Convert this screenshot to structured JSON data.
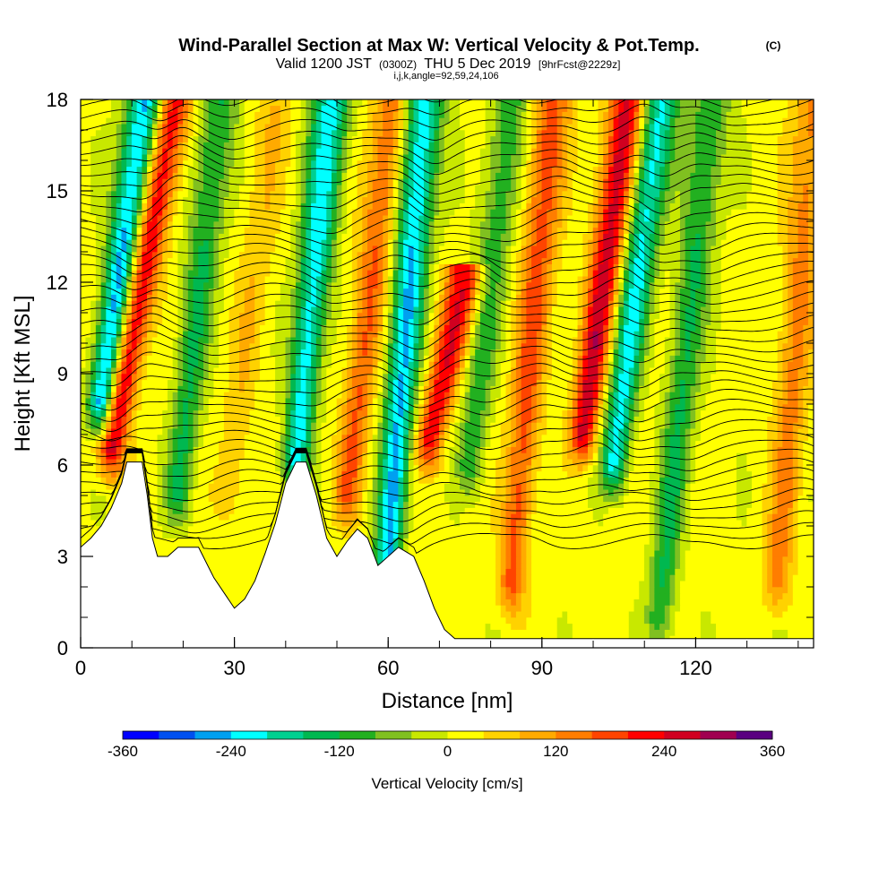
{
  "title": {
    "main": "Wind-Parallel Section at Max W: Vertical Velocity & Pot.Temp.",
    "copyright": "(C)",
    "valid_prefix": "Valid 1200 JST",
    "valid_utc": "(0300Z)",
    "valid_date": "THU 5 Dec 2019",
    "forecast": "[9hrFcst@2229z]",
    "params": "i,j,k,angle=92,59,24,106"
  },
  "chart_data": {
    "type": "heatmap",
    "xlabel": "Distance [nm]",
    "ylabel": "Height [Kft MSL]",
    "xlim": [
      0,
      143
    ],
    "ylim": [
      0,
      18
    ],
    "x_ticks": [
      0,
      30,
      60,
      90,
      120
    ],
    "y_ticks": [
      0,
      3,
      6,
      9,
      12,
      15,
      18
    ],
    "x_tick_labels": [
      "0",
      "30",
      "60",
      "90",
      "120"
    ],
    "y_tick_labels": [
      "0",
      "3",
      "6",
      "9",
      "12",
      "15",
      "18"
    ],
    "terrain": [
      {
        "x": 0,
        "z": 3.3
      },
      {
        "x": 2,
        "z": 3.6
      },
      {
        "x": 4,
        "z": 4.0
      },
      {
        "x": 6,
        "z": 4.6
      },
      {
        "x": 8,
        "z": 5.4
      },
      {
        "x": 9,
        "z": 6.1
      },
      {
        "x": 12,
        "z": 6.1
      },
      {
        "x": 13,
        "z": 5.0
      },
      {
        "x": 14,
        "z": 3.6
      },
      {
        "x": 15,
        "z": 3.0
      },
      {
        "x": 17,
        "z": 3.0
      },
      {
        "x": 19,
        "z": 3.3
      },
      {
        "x": 23,
        "z": 3.3
      },
      {
        "x": 26,
        "z": 2.3
      },
      {
        "x": 28,
        "z": 1.8
      },
      {
        "x": 30,
        "z": 1.3
      },
      {
        "x": 32,
        "z": 1.6
      },
      {
        "x": 34,
        "z": 2.2
      },
      {
        "x": 36,
        "z": 3.1
      },
      {
        "x": 38,
        "z": 4.1
      },
      {
        "x": 40,
        "z": 5.4
      },
      {
        "x": 42,
        "z": 6.1
      },
      {
        "x": 44,
        "z": 6.1
      },
      {
        "x": 46,
        "z": 5.0
      },
      {
        "x": 48,
        "z": 3.6
      },
      {
        "x": 50,
        "z": 3.0
      },
      {
        "x": 52,
        "z": 3.5
      },
      {
        "x": 54,
        "z": 3.9
      },
      {
        "x": 56,
        "z": 3.6
      },
      {
        "x": 58,
        "z": 2.7
      },
      {
        "x": 60,
        "z": 3.0
      },
      {
        "x": 62,
        "z": 3.3
      },
      {
        "x": 65,
        "z": 3.0
      },
      {
        "x": 67,
        "z": 2.2
      },
      {
        "x": 69,
        "z": 1.3
      },
      {
        "x": 71,
        "z": 0.6
      },
      {
        "x": 73,
        "z": 0.3
      },
      {
        "x": 143,
        "z": 0.3
      }
    ],
    "updraft_bands": [
      {
        "x0": 18,
        "x1": 6,
        "z_top": 18,
        "z_bottom": 6.5,
        "peak": 250
      },
      {
        "x0": 38,
        "x1": 29,
        "z_top": 18,
        "z_bottom": 5,
        "peak": 60
      },
      {
        "x0": 61,
        "x1": 52,
        "z_top": 18,
        "z_bottom": 5,
        "peak": 150
      },
      {
        "x0": 75,
        "x1": 68,
        "z_top": 12,
        "z_bottom": 6.8,
        "peak": 220
      },
      {
        "x0": 92,
        "x1": 84,
        "z_top": 18,
        "z_bottom": 2,
        "peak": 160
      },
      {
        "x0": 107,
        "x1": 98,
        "z_top": 18,
        "z_bottom": 7,
        "peak": 250
      },
      {
        "x0": 143,
        "x1": 136,
        "z_top": 18,
        "z_bottom": 2,
        "peak": 120
      }
    ],
    "downdraft_bands": [
      {
        "x0": 13,
        "x1": 4,
        "z_top": 18,
        "z_bottom": 8,
        "peak": -300
      },
      {
        "x0": 27,
        "x1": 19,
        "z_top": 18,
        "z_bottom": 5,
        "peak": -140
      },
      {
        "x0": 49,
        "x1": 42,
        "z_top": 18,
        "z_bottom": 6,
        "peak": -240
      },
      {
        "x0": 67,
        "x1": 60,
        "z_top": 18,
        "z_bottom": 3,
        "peak": -260
      },
      {
        "x0": 84,
        "x1": 76,
        "z_top": 18,
        "z_bottom": 6,
        "peak": -120
      },
      {
        "x0": 113,
        "x1": 104,
        "z_top": 18,
        "z_bottom": 6,
        "peak": -230
      },
      {
        "x0": 123,
        "x1": 113,
        "z_top": 18,
        "z_bottom": 1,
        "peak": -140
      }
    ],
    "colorbar": {
      "label": "Vertical Velocity [cm/s]",
      "min": -360,
      "max": 360,
      "tick_values": [
        -360,
        -240,
        -120,
        0,
        120,
        240,
        360
      ],
      "tick_labels": [
        "-360",
        "-240",
        "-120",
        "0",
        "120",
        "240",
        "360"
      ],
      "colors": [
        "#0000ff",
        "#0050f0",
        "#00a0f0",
        "#00ffff",
        "#00d090",
        "#00b850",
        "#22b020",
        "#80c020",
        "#c8e800",
        "#ffff00",
        "#ffd200",
        "#ffaa00",
        "#ff7d00",
        "#ff4400",
        "#ff0000",
        "#d00020",
        "#a00050",
        "#5a0080"
      ]
    }
  }
}
